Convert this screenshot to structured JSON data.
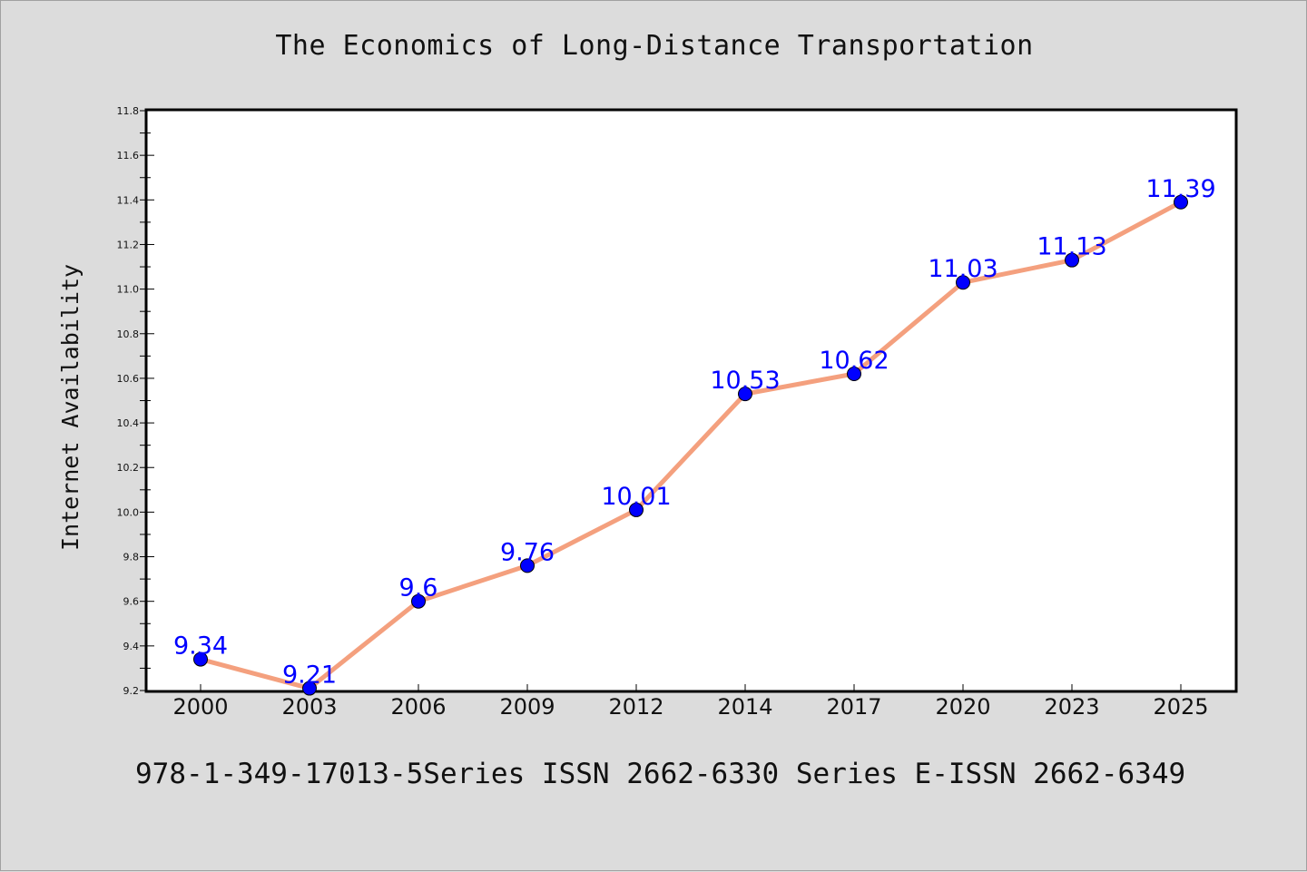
{
  "chart_data": {
    "type": "line",
    "title": "The Economics of Long-Distance Transportation",
    "xlabel": "",
    "ylabel": "Internet Availability",
    "categories": [
      "2000",
      "2003",
      "2006",
      "2009",
      "2012",
      "2014",
      "2017",
      "2020",
      "2023",
      "2025"
    ],
    "series": [
      {
        "values": [
          9.34,
          9.21,
          9.6,
          9.76,
          10.01,
          10.53,
          10.62,
          11.03,
          11.13,
          11.39
        ],
        "line_color": "#f4a07e",
        "marker_color": "#0000ff"
      }
    ],
    "data_labels": [
      "9.34",
      "9.21",
      "9.6",
      "9.76",
      "10.01",
      "10.53",
      "10.62",
      "11.03",
      "11.13",
      "11.39"
    ],
    "ylim": [
      9.2,
      11.8
    ],
    "yticks": [
      "9.2",
      "9.4",
      "9.6",
      "9.8",
      "10.0",
      "10.2",
      "10.4",
      "10.6",
      "10.8",
      "11.0",
      "11.2",
      "11.4",
      "11.6",
      "11.8"
    ],
    "grid": false,
    "legend": "none"
  },
  "footer": "978-1-349-17013-5Series ISSN 2662-6330 Series E-ISSN 2662-6349"
}
